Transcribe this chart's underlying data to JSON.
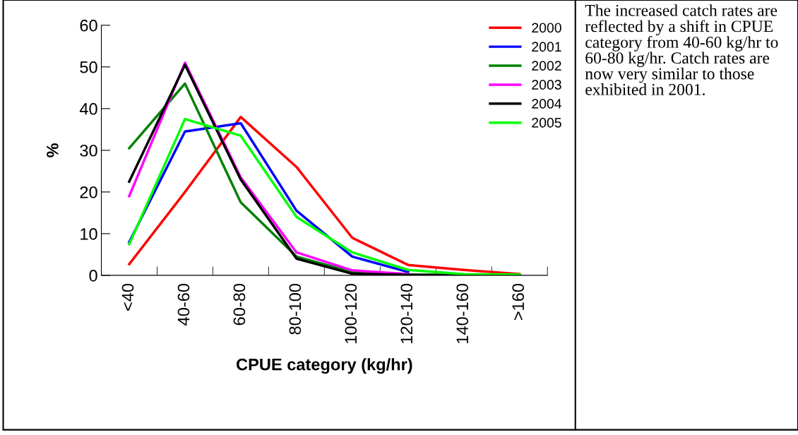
{
  "chart_data": {
    "type": "line",
    "xlabel": "CPUE category (kg/hr)",
    "ylabel": "%",
    "categories": [
      "<40",
      "40-60",
      "60-80",
      "80-100",
      "100-120",
      "120-140",
      "140-160",
      ">160"
    ],
    "series": [
      {
        "name": "2000",
        "color": "#ff0000",
        "values": [
          2.7,
          20,
          38,
          26,
          9,
          2.5,
          1.3,
          0.3
        ]
      },
      {
        "name": "2001",
        "color": "#0000ff",
        "values": [
          8,
          34.5,
          36.5,
          15.5,
          4.5,
          0.8,
          null,
          null
        ]
      },
      {
        "name": "2002",
        "color": "#008000",
        "values": [
          30.5,
          46,
          17.5,
          4.5,
          0.8,
          0.2,
          0.1,
          0
        ]
      },
      {
        "name": "2003",
        "color": "#ff00ff",
        "values": [
          19,
          51,
          23.5,
          5.5,
          1.2,
          0.3,
          null,
          null
        ]
      },
      {
        "name": "2004",
        "color": "#000000",
        "values": [
          22.5,
          50.5,
          23,
          4,
          0.4,
          0.1,
          0,
          0
        ]
      },
      {
        "name": "2005",
        "color": "#00ff00",
        "values": [
          7.5,
          37.5,
          33.5,
          14,
          5.5,
          1.3,
          0.3,
          0.2
        ]
      }
    ],
    "ylim": [
      0,
      60
    ],
    "yticks": [
      0,
      10,
      20,
      30,
      40,
      50,
      60
    ],
    "grid": false,
    "legend": "top right",
    "marker": "none",
    "line_style": "solid",
    "annotations": [
      "The increased catch rates are reflected by a shift in CPUE category from 40-60 kg/hr to 60-80 kg/hr. Catch rates are now very similar to those exhibited in 2001."
    ]
  }
}
